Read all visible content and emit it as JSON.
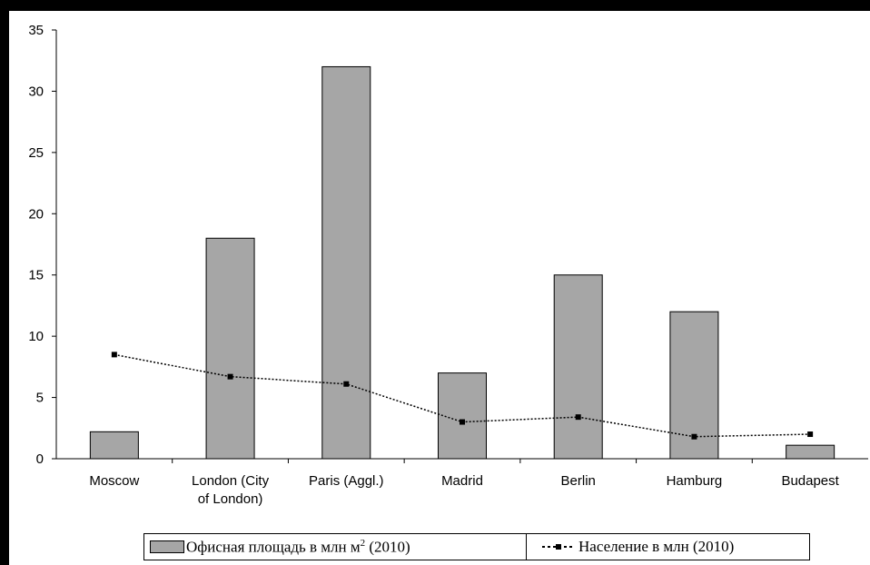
{
  "chart_data": {
    "type": "bar",
    "title": "",
    "xlabel": "",
    "ylabel": "",
    "categories": [
      "Moscow",
      "London (City of London)",
      "Paris (Aggl.)",
      "Madrid",
      "Berlin",
      "Hamburg",
      "Budapest"
    ],
    "category_lines": [
      [
        "Moscow"
      ],
      [
        "London (City",
        "of London)"
      ],
      [
        "Paris (Aggl.)"
      ],
      [
        "Madrid"
      ],
      [
        "Berlin"
      ],
      [
        "Hamburg"
      ],
      [
        "Budapest"
      ]
    ],
    "series": [
      {
        "name": "Офисная площадь в млн м² (2010)",
        "legend_text": "Офисная площадь в млн м",
        "legend_sup": "2",
        "legend_suffix": " (2010)",
        "type": "bar",
        "values": [
          2.2,
          18,
          32,
          7,
          15,
          12,
          1.1
        ],
        "color": "#a6a6a6"
      },
      {
        "name": "Население в млн (2010)",
        "type": "line",
        "style": "dotted",
        "marker": "square",
        "values": [
          8.5,
          6.7,
          6.1,
          3.0,
          3.4,
          1.8,
          2.0
        ],
        "color": "#000000"
      }
    ],
    "ylim": [
      0,
      35
    ],
    "yticks": [
      0,
      5,
      10,
      15,
      20,
      25,
      30,
      35
    ],
    "grid": false,
    "legend_placement": "bottom"
  }
}
